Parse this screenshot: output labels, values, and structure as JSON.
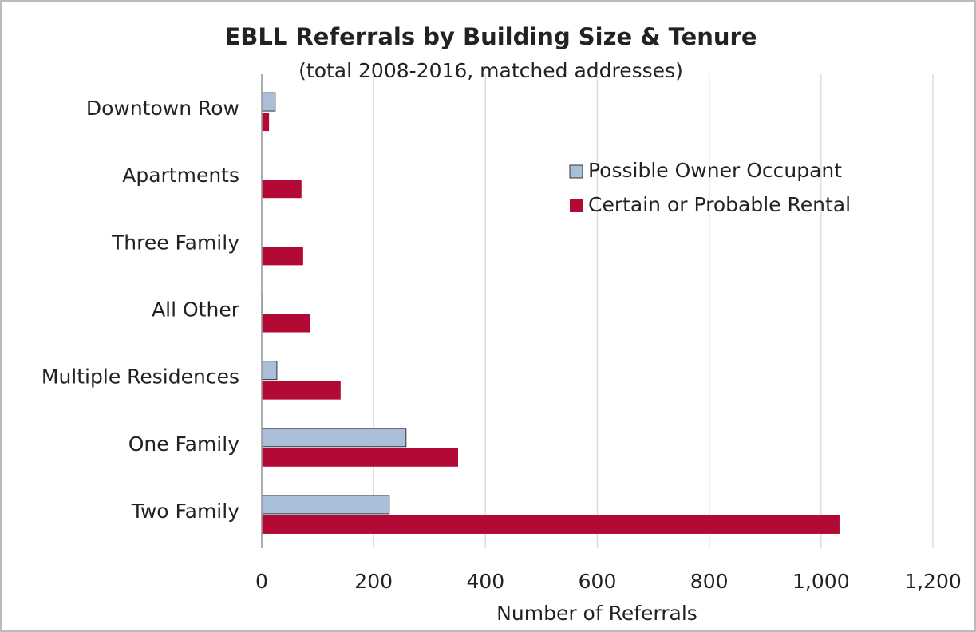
{
  "chart_data": {
    "type": "barh",
    "title": "EBLL Referrals by Building Size & Tenure",
    "subtitle": "(total 2008-2016, matched addresses)",
    "x_label": "Number of Referrals",
    "categories": [
      "Downtown Row",
      "Apartments",
      "Three Family",
      "All Other",
      "Multiple Residences",
      "One Family",
      "Two Family"
    ],
    "series": [
      {
        "name": "Possible Owner Occupant",
        "color": "#a9bfd9",
        "values": [
          24,
          0,
          0,
          2,
          27,
          258,
          228
        ]
      },
      {
        "name": "Certain or Probable Rental",
        "color": "#b20a34",
        "values": [
          13,
          71,
          74,
          86,
          141,
          351,
          1033
        ]
      }
    ],
    "xlim": [
      0,
      1200
    ],
    "xticks": [
      0,
      200,
      400,
      600,
      800,
      {
        "value": 1000,
        "label": "1,000"
      },
      {
        "value": 1200,
        "label": "1,200"
      }
    ],
    "grid": true,
    "legend": "upper right"
  }
}
